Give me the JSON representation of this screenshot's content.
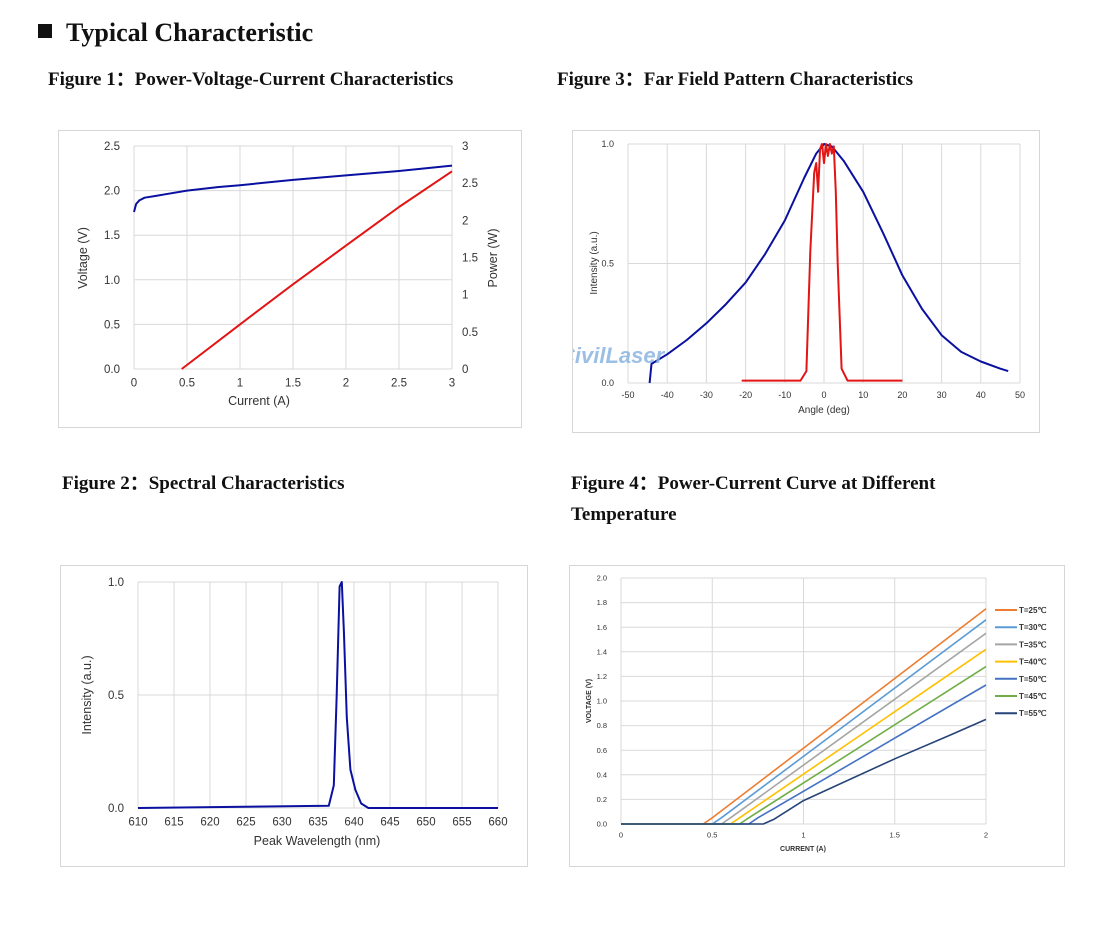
{
  "page": {
    "main_title": "Typical Characteristic",
    "fig1_title": "Figure 1：Power-Voltage-Current Characteristics",
    "fig2_title": "Figure 2：Spectral Characteristics",
    "fig3_title": "Figure 3：Far Field Pattern Characteristics",
    "fig4_title": "Figure 4：Power-Current Curve at Different Temperature",
    "watermark": "CivilLaser"
  },
  "chart_data": [
    {
      "id": "fig1",
      "type": "line",
      "xlabel": "Current (A)",
      "ylabel": "Voltage (V)",
      "y2label": "Power (W)",
      "xlim": [
        0,
        3
      ],
      "ylim": [
        0,
        2.5
      ],
      "y2lim": [
        0,
        3
      ],
      "xticks": [
        "0",
        "0.5",
        "1",
        "1.5",
        "2",
        "2.5",
        "3"
      ],
      "yticks": [
        "0.0",
        "0.5",
        "1.0",
        "1.5",
        "2.0",
        "2.5"
      ],
      "y2ticks": [
        "0",
        "0.5",
        "1",
        "1.5",
        "2",
        "2.5",
        "3"
      ],
      "grid": true,
      "series": [
        {
          "axis": "left",
          "color": "#0a10a0",
          "x": [
            0,
            0.02,
            0.05,
            0.1,
            0.2,
            0.3,
            0.5,
            0.8,
            1.0,
            1.5,
            2.0,
            2.5,
            3.0
          ],
          "y": [
            1.76,
            1.85,
            1.89,
            1.92,
            1.94,
            1.96,
            2.0,
            2.04,
            2.06,
            2.12,
            2.17,
            2.22,
            2.28
          ]
        },
        {
          "axis": "right",
          "color": "#e31414",
          "x": [
            0.45,
            1.0,
            1.5,
            2.0,
            2.5,
            3.0
          ],
          "y": [
            0,
            0.6,
            1.14,
            1.66,
            2.18,
            2.66
          ]
        }
      ]
    },
    {
      "id": "fig2",
      "type": "line",
      "xlabel": "Peak Wavelength (nm)",
      "ylabel": "Intensity (a.u.)",
      "xlim": [
        610,
        660
      ],
      "ylim": [
        0,
        1
      ],
      "xticks": [
        "610",
        "615",
        "620",
        "625",
        "630",
        "635",
        "640",
        "645",
        "650",
        "655",
        "660"
      ],
      "yticks": [
        "0.0",
        "0.5",
        "1.0"
      ],
      "grid": true,
      "series": [
        {
          "color": "#0a10a0",
          "x": [
            610,
            636.5,
            637.2,
            637.6,
            638.0,
            638.3,
            638.6,
            639.0,
            639.5,
            640.2,
            641.0,
            642.0,
            660
          ],
          "y": [
            0,
            0.01,
            0.1,
            0.5,
            0.98,
            1.0,
            0.78,
            0.4,
            0.17,
            0.08,
            0.02,
            0.0,
            0
          ]
        }
      ]
    },
    {
      "id": "fig3",
      "type": "line",
      "xlabel": "Angle (deg)",
      "ylabel": "Intensity (a.u.)",
      "xlim": [
        -50,
        50
      ],
      "ylim": [
        0,
        1
      ],
      "xticks": [
        "-50",
        "-40",
        "-30",
        "-20",
        "-10",
        "0",
        "10",
        "20",
        "30",
        "40",
        "50"
      ],
      "yticks": [
        "0.0",
        "0.5",
        "1.0"
      ],
      "grid": true,
      "series": [
        {
          "color": "#0a10a0",
          "x": [
            -44.5,
            -44,
            -40,
            -35,
            -30,
            -25,
            -20,
            -15,
            -10,
            -5,
            -2,
            0,
            2,
            5,
            10,
            15,
            20,
            25,
            30,
            35,
            40,
            45,
            47
          ],
          "y": [
            0,
            0.08,
            0.12,
            0.18,
            0.25,
            0.33,
            0.42,
            0.54,
            0.68,
            0.86,
            0.96,
            1.0,
            0.99,
            0.93,
            0.8,
            0.63,
            0.45,
            0.31,
            0.2,
            0.13,
            0.09,
            0.06,
            0.05
          ]
        },
        {
          "color": "#e31414",
          "x": [
            -21,
            -6,
            -4.5,
            -3.5,
            -2.5,
            -2,
            -1.5,
            -1,
            -0.5,
            0,
            0.5,
            1,
            1.5,
            2,
            2.5,
            3,
            3.5,
            4.5,
            6,
            20
          ],
          "y": [
            0.01,
            0.01,
            0.05,
            0.55,
            0.88,
            0.92,
            0.8,
            0.98,
            1.0,
            0.92,
            1.0,
            0.95,
            1.0,
            0.96,
            0.99,
            0.8,
            0.5,
            0.06,
            0.01,
            0.01
          ]
        }
      ]
    },
    {
      "id": "fig4",
      "type": "line",
      "xlabel": "CURRENT (A)",
      "ylabel": "VOLTAGE (V)",
      "xlim": [
        0,
        2
      ],
      "ylim": [
        0,
        2
      ],
      "xticks": [
        "0",
        "0.5",
        "1",
        "1.5",
        "2"
      ],
      "yticks": [
        "0.0",
        "0.2",
        "0.4",
        "0.6",
        "0.8",
        "1.0",
        "1.2",
        "1.4",
        "1.6",
        "1.8",
        "2.0"
      ],
      "grid": true,
      "legend": "right",
      "series": [
        {
          "name": "T=25℃",
          "color": "#ed7d31",
          "x": [
            0,
            0.45,
            0.5,
            2.0
          ],
          "y": [
            0,
            0.0,
            0.05,
            1.75
          ]
        },
        {
          "name": "T=30℃",
          "color": "#5b9bd5",
          "x": [
            0,
            0.5,
            0.55,
            2.0
          ],
          "y": [
            0,
            0.0,
            0.05,
            1.66
          ]
        },
        {
          "name": "T=35℃",
          "color": "#a5a5a5",
          "x": [
            0,
            0.55,
            0.6,
            2.0
          ],
          "y": [
            0,
            0.0,
            0.05,
            1.55
          ]
        },
        {
          "name": "T=40℃",
          "color": "#ffc000",
          "x": [
            0,
            0.6,
            0.65,
            2.0
          ],
          "y": [
            0,
            0.0,
            0.05,
            1.42
          ]
        },
        {
          "name": "T=50℃",
          "color": "#4472c4",
          "x": [
            0,
            0.7,
            0.75,
            2.0
          ],
          "y": [
            0,
            0.0,
            0.05,
            1.13
          ]
        },
        {
          "name": "T=45℃",
          "color": "#70ad47",
          "x": [
            0,
            0.65,
            0.7,
            2.0
          ],
          "y": [
            0,
            0.0,
            0.05,
            1.28
          ]
        },
        {
          "name": "T=55℃",
          "color": "#264478",
          "x": [
            0,
            0.78,
            0.84,
            1.0,
            1.5,
            1.8,
            2.0
          ],
          "y": [
            0,
            0.0,
            0.04,
            0.19,
            0.53,
            0.72,
            0.85
          ]
        }
      ]
    }
  ]
}
